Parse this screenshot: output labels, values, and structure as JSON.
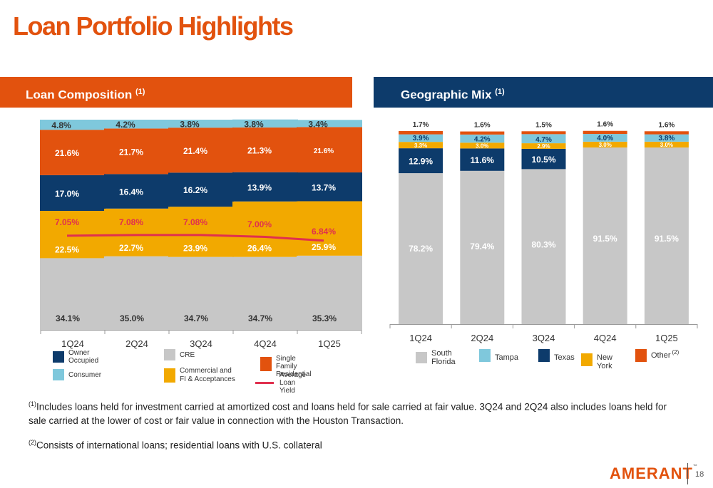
{
  "title": "Loan Portfolio Highlights",
  "left_section": {
    "title": "Loan Composition",
    "footnote_marker": "(1)"
  },
  "right_section": {
    "title": "Geographic Mix",
    "footnote_marker": "(1)"
  },
  "colors": {
    "orange": "#e2520e",
    "navy": "#0d3b6b",
    "gray": "#c7c7c7",
    "lightblue": "#7fc8dc",
    "yellow": "#f2a900",
    "red": "#e0304e",
    "white_label": "#ffffff"
  },
  "chart_data": [
    {
      "type": "bar",
      "stacked": true,
      "categories": [
        "1Q24",
        "2Q24",
        "3Q24",
        "4Q24",
        "1Q25"
      ],
      "series": [
        {
          "name": "CRE",
          "color": "#c7c7c7",
          "values": [
            34.1,
            35.0,
            34.7,
            34.7,
            35.3
          ],
          "labels": [
            "34.1%",
            "35.0%",
            "34.7%",
            "34.7%",
            "35.3%"
          ]
        },
        {
          "name": "Commercial and FI & Acceptances",
          "color": "#f2a900",
          "values": [
            22.5,
            22.7,
            23.9,
            26.4,
            25.9
          ],
          "labels": [
            "22.5%",
            "22.7%",
            "23.9%",
            "26.4%",
            "25.9%"
          ]
        },
        {
          "name": "Owner Occupied",
          "color": "#0d3b6b",
          "values": [
            17.0,
            16.4,
            16.2,
            13.9,
            13.7
          ],
          "labels": [
            "17.0%",
            "16.4%",
            "16.2%",
            "13.9%",
            "13.7%"
          ]
        },
        {
          "name": "Single Family Residential",
          "color": "#e2520e",
          "values": [
            21.6,
            21.7,
            21.4,
            21.3,
            21.6
          ],
          "labels": [
            "21.6%",
            "21.7%",
            "21.4%",
            "21.3%",
            "21.6%"
          ]
        },
        {
          "name": "Consumer",
          "color": "#7fc8dc",
          "values": [
            4.8,
            4.2,
            3.8,
            3.8,
            3.4
          ],
          "labels": [
            "4.8%",
            "4.2%",
            "3.8%",
            "3.8%",
            "3.4%"
          ]
        }
      ],
      "line_series": {
        "name": "Average Loan Yield",
        "color": "#e0304e",
        "values": [
          7.05,
          7.08,
          7.08,
          7.0,
          6.84
        ],
        "labels": [
          "7.05%",
          "7.08%",
          "7.08%",
          "7.00%",
          "6.84%"
        ]
      },
      "ylim": [
        0,
        100
      ],
      "legend": [
        {
          "label": "Owner Occupied",
          "color": "#0d3b6b",
          "kind": "box"
        },
        {
          "label": "CRE",
          "color": "#c7c7c7",
          "kind": "box"
        },
        {
          "label": "Single Family Residential",
          "color": "#e2520e",
          "kind": "box"
        },
        {
          "label": "Consumer",
          "color": "#7fc8dc",
          "kind": "box"
        },
        {
          "label": "Commercial and FI & Acceptances",
          "color": "#f2a900",
          "kind": "box"
        },
        {
          "label": "Average Loan Yield",
          "color": "#e0304e",
          "kind": "line"
        }
      ]
    },
    {
      "type": "bar",
      "stacked": true,
      "categories": [
        "1Q24",
        "2Q24",
        "3Q24",
        "4Q24",
        "1Q25"
      ],
      "series": [
        {
          "name": "South Florida",
          "color": "#c7c7c7",
          "values": [
            78.2,
            79.4,
            80.3,
            91.5,
            91.5
          ],
          "labels": [
            "78.2%",
            "79.4%",
            "80.3%",
            "91.5%",
            "91.5%"
          ]
        },
        {
          "name": "Texas",
          "color": "#0d3b6b",
          "values": [
            12.9,
            11.6,
            10.5,
            0,
            0
          ],
          "labels": [
            "12.9%",
            "11.6%",
            "10.5%",
            "",
            ""
          ]
        },
        {
          "name": "New York",
          "color": "#f2a900",
          "values": [
            3.3,
            3.0,
            2.9,
            3.0,
            3.0
          ],
          "labels": [
            "3.3%",
            "3.0%",
            "2.9%",
            "3.0%",
            "3.0%"
          ]
        },
        {
          "name": "Tampa",
          "color": "#7fc8dc",
          "values": [
            3.9,
            4.2,
            4.7,
            4.0,
            3.8
          ],
          "labels": [
            "3.9%",
            "4.2%",
            "4.7%",
            "4.0%",
            "3.8%"
          ]
        },
        {
          "name": "Other",
          "color": "#e2520e",
          "values": [
            1.7,
            1.6,
            1.5,
            1.6,
            1.6
          ],
          "labels": [
            "1.7%",
            "1.6%",
            "1.5%",
            "1.6%",
            "1.6%"
          ]
        }
      ],
      "ylim": [
        0,
        100
      ],
      "legend": [
        {
          "label": "South Florida",
          "color": "#c7c7c7"
        },
        {
          "label": "Tampa",
          "color": "#7fc8dc"
        },
        {
          "label": "Texas",
          "color": "#0d3b6b"
        },
        {
          "label": "New York",
          "color": "#f2a900"
        },
        {
          "label": "Other",
          "color": "#e2520e",
          "footnote_marker": "(2)"
        }
      ]
    }
  ],
  "footnotes": {
    "note1_marker": "(1)",
    "note1_text": "Includes loans held for investment carried at amortized cost and loans held for sale carried at fair value. 3Q24 and 2Q24 also includes loans held for sale carried at the lower of cost or fair value in connection with the Houston Transaction.",
    "note2_marker": "(2)",
    "note2_text": "Consists of international loans; residential loans with U.S. collateral"
  },
  "brand": {
    "logo_text": "AMERANT",
    "logo_mark": "™",
    "page_number": "18"
  }
}
